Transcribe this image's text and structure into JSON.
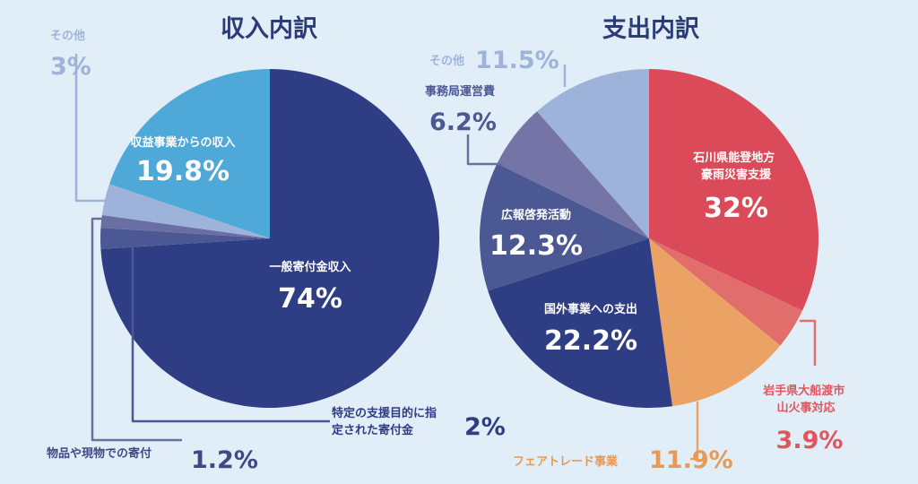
{
  "chart_data": [
    {
      "type": "pie",
      "title": "収入内訳",
      "slices": [
        {
          "label": "一般寄付金収入",
          "value": 74,
          "value_label": "74%",
          "color": "#2e3d84"
        },
        {
          "label": "特定の支援目的に指定された寄付金",
          "value": 2,
          "value_label": "2%",
          "color": "#4b5893"
        },
        {
          "label": "物品や現物での寄付",
          "value": 1.2,
          "value_label": "1.2%",
          "color": "#6a6fa3"
        },
        {
          "label": "その他",
          "value": 3,
          "value_label": "3%",
          "color": "#9eb3da"
        },
        {
          "label": "収益事業からの収入",
          "value": 19.8,
          "value_label": "19.8%",
          "color": "#4fa9d8"
        }
      ]
    },
    {
      "type": "pie",
      "title": "支出内訳",
      "slices": [
        {
          "label": "石川県能登地方豪雨災害支援",
          "value": 32,
          "value_label": "32%",
          "color": "#da4a58"
        },
        {
          "label": "岩手県大船渡市山火事対応",
          "value": 3.9,
          "value_label": "3.9%",
          "color": "#e26e6c"
        },
        {
          "label": "フェアトレード事業",
          "value": 11.9,
          "value_label": "11.9%",
          "color": "#eba365"
        },
        {
          "label": "国外事業への支出",
          "value": 22.2,
          "value_label": "22.2%",
          "color": "#2e3d84"
        },
        {
          "label": "広報啓発活動",
          "value": 12.3,
          "value_label": "12.3%",
          "color": "#4b5893"
        },
        {
          "label": "事務局運営費",
          "value": 6.2,
          "value_label": "6.2%",
          "color": "#7475a6"
        },
        {
          "label": "その他",
          "value": 11.5,
          "value_label": "11.5%",
          "color": "#9eb3da"
        }
      ]
    }
  ]
}
